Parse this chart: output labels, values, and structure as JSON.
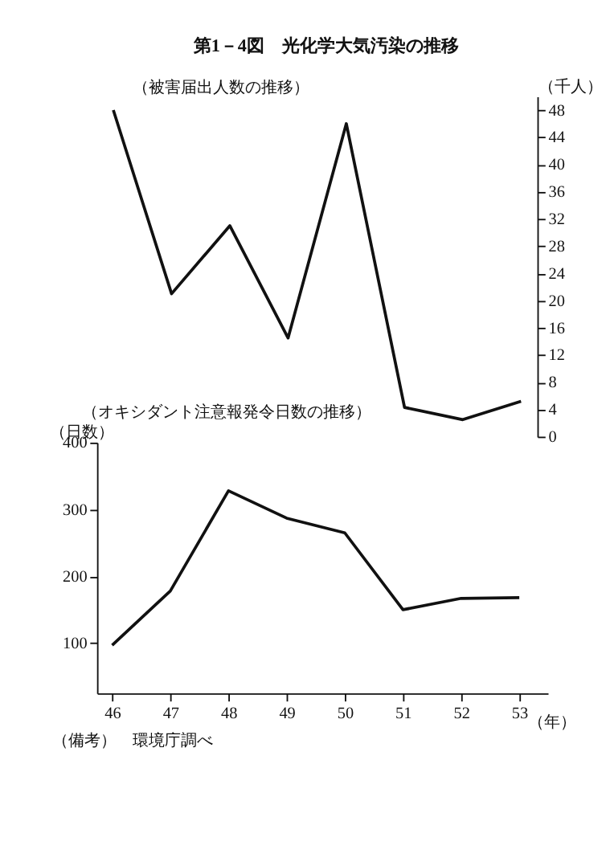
{
  "chart_data": [
    {
      "type": "line",
      "title": "第1－4図　光化学大気汚染の推移",
      "subtitle": "（被害届出人数の推移）",
      "ylabel": "（千人）",
      "categories": [
        null,
        null,
        null,
        null,
        null,
        null,
        null,
        null
      ],
      "series": [
        {
          "color": "#111111",
          "values": [
            48,
            21,
            31,
            14.5,
            46,
            4.3,
            2.5,
            5.2
          ]
        }
      ],
      "ylim": [
        0,
        50
      ],
      "yticks": [
        0,
        4,
        8,
        12,
        16,
        20,
        24,
        28,
        32,
        36,
        40,
        44,
        48
      ],
      "tick_labels": "y",
      "grid": false,
      "legend": false,
      "marker": "none",
      "line_style": "solid"
    },
    {
      "type": "line",
      "title": "（オキシダント注意報発令日数の推移）",
      "ylabel": "（日数）",
      "xlabel": "（年）",
      "x": [
        46,
        47,
        48,
        49,
        50,
        51,
        52,
        53
      ],
      "xlim": [
        45.74,
        53.49
      ],
      "xticks": [
        46,
        47,
        48,
        49,
        50,
        51,
        52,
        53
      ],
      "series": [
        {
          "color": "#111111",
          "values": [
            97,
            178,
            328,
            287,
            265,
            150,
            167,
            168
          ]
        }
      ],
      "ylim": [
        25,
        400
      ],
      "yticks": [
        100,
        200,
        300,
        400
      ],
      "annotations": [
        "（備考）　環境庁調べ"
      ],
      "grid": false,
      "legend": false,
      "marker": "none",
      "line_style": "solid"
    }
  ]
}
